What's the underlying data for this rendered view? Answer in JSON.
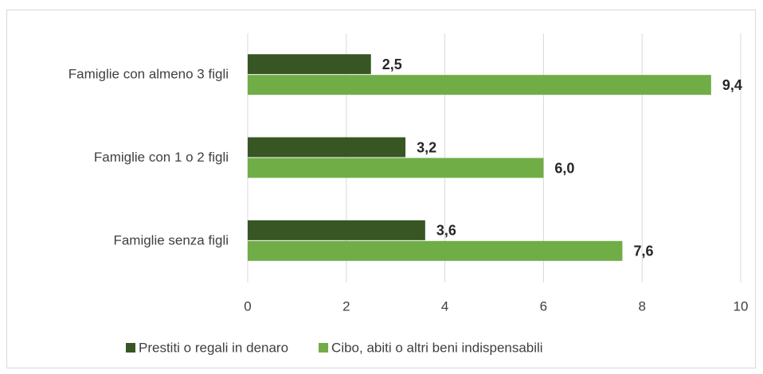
{
  "chart_data": {
    "type": "hbar",
    "categories": [
      "Famiglie con almeno 3 figli",
      "Famiglie con 1 o 2 figli",
      "Famiglie senza figli"
    ],
    "series": [
      {
        "name": "Prestiti o regali in denaro",
        "color": "#375623",
        "values": [
          2.5,
          3.2,
          3.6
        ],
        "value_labels": [
          "2,5",
          "3,2",
          "3,6"
        ]
      },
      {
        "name": "Cibo, abiti o altri beni indispensabili",
        "color": "#70ad47",
        "values": [
          9.4,
          6.0,
          7.6
        ],
        "value_labels": [
          "9,4",
          "6,0",
          "7,6"
        ]
      }
    ],
    "xlim": [
      0,
      10
    ],
    "xticks": [
      0,
      2,
      4,
      6,
      8,
      10
    ],
    "grid": true,
    "legend": "bottom"
  }
}
